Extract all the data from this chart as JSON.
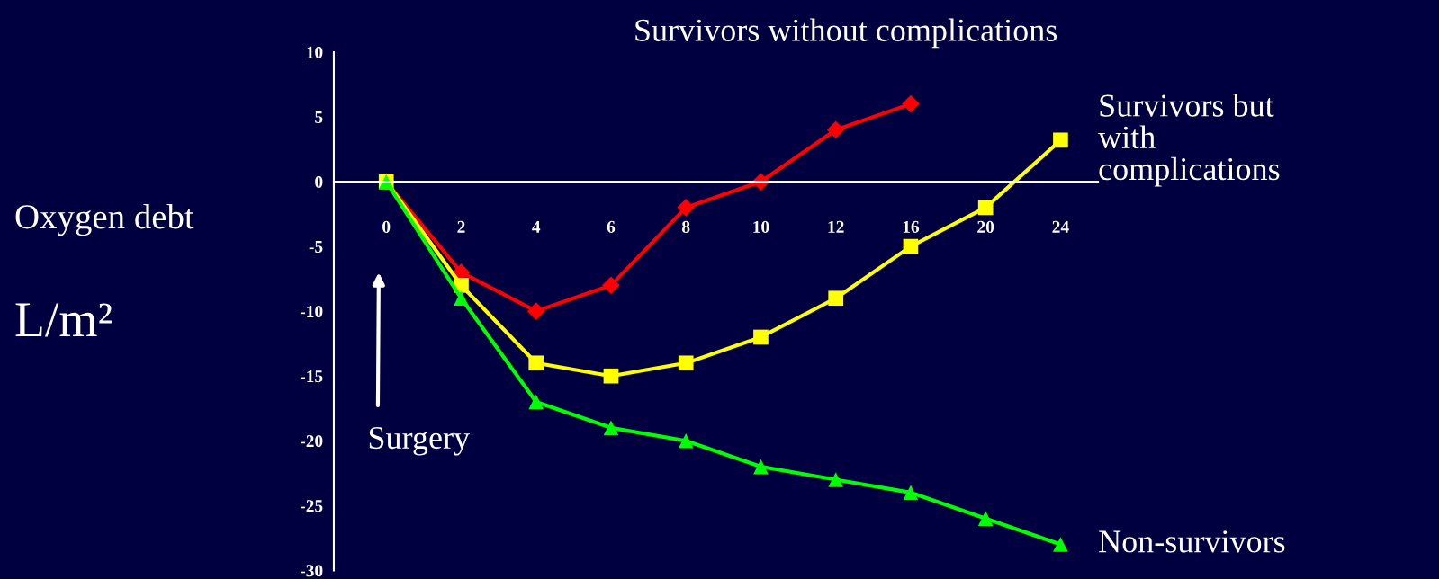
{
  "chart_data": {
    "type": "line",
    "ylabel": "Oxygen debt",
    "categories": [
      "0",
      "2",
      "4",
      "6",
      "8",
      "10",
      "12",
      "16",
      "20",
      "24"
    ],
    "ylim": [
      -30,
      10
    ],
    "yticks": [
      -30,
      -25,
      -20,
      -15,
      -10,
      -5,
      0,
      5,
      10
    ],
    "grid": false,
    "legend": false,
    "line_style": "solid",
    "series": [
      {
        "name": "Survivors without complications",
        "color": "#ff0000",
        "marker": "diamond",
        "values": [
          0,
          -7,
          -10,
          -8,
          -2,
          0,
          4,
          6,
          null,
          null
        ]
      },
      {
        "name": "Survivors but\nwith\ncomplications",
        "color": "#ffff00",
        "marker": "square",
        "values": [
          0,
          -8,
          -14,
          -15,
          -14,
          -12,
          -9,
          -5,
          -2,
          3.2
        ]
      },
      {
        "name": "Non-survivors",
        "color": "#00ff00",
        "marker": "triangle",
        "values": [
          0,
          -9,
          -17,
          -19,
          -20,
          -22,
          -23,
          -24,
          -26,
          -28
        ]
      }
    ],
    "annotations": [
      "L/m²",
      "Surgery"
    ]
  }
}
